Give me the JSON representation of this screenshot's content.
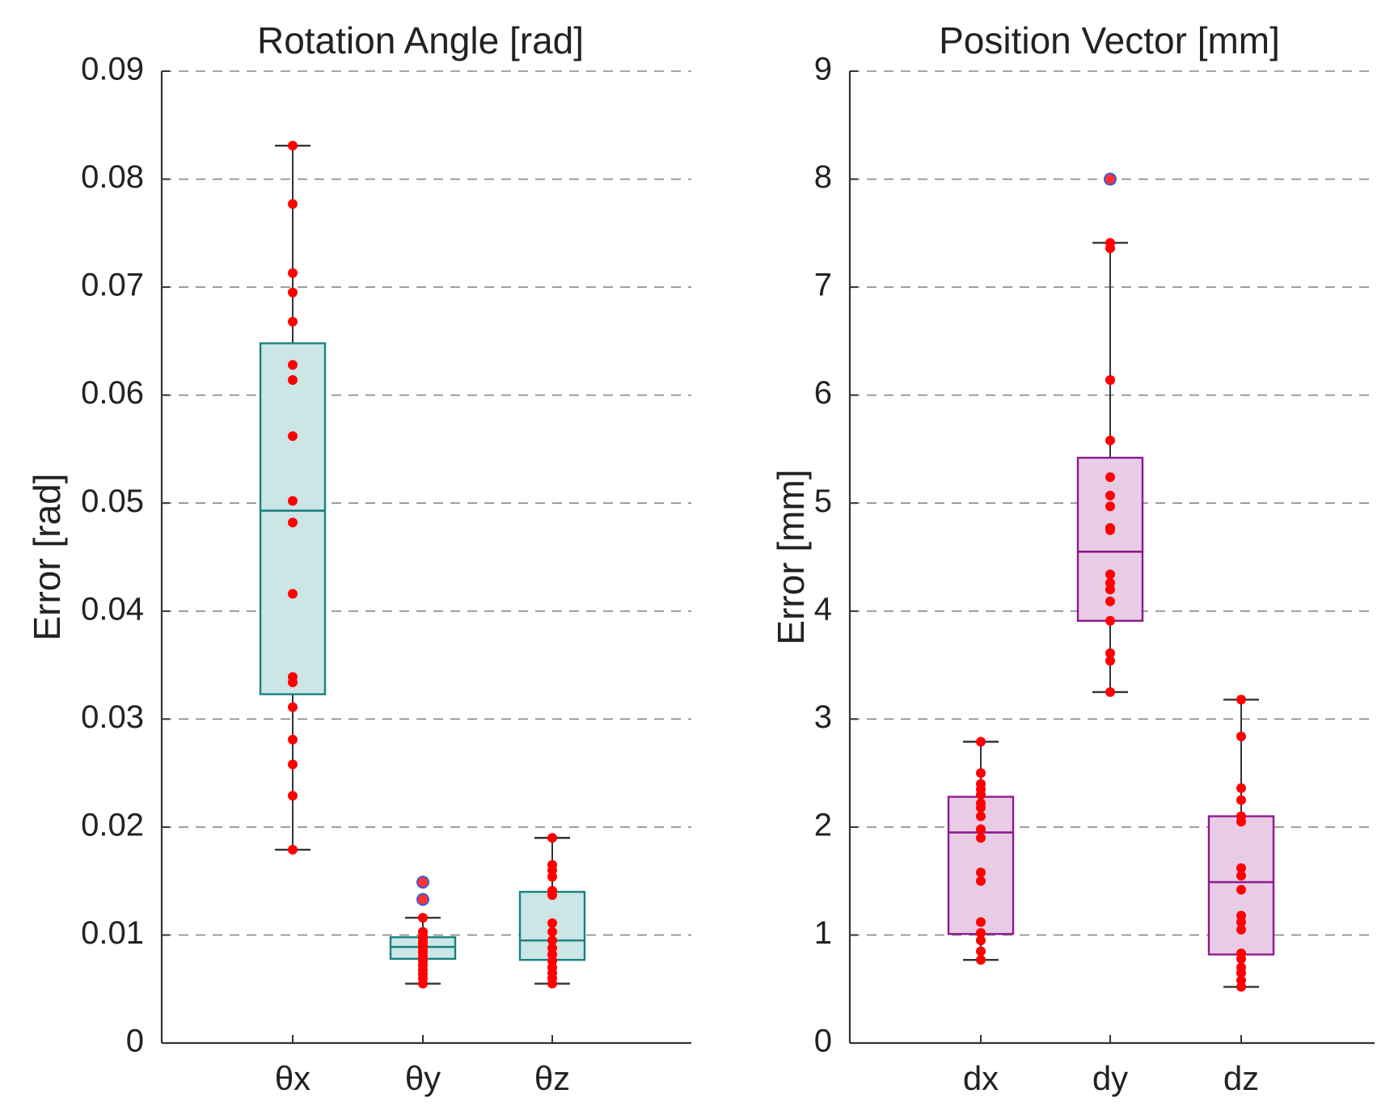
{
  "chart_data": [
    {
      "type": "box",
      "title": "Rotation Angle [rad]",
      "ylabel": "Error [rad]",
      "xlabel": "",
      "ylim": [
        0,
        0.09
      ],
      "yticks": [
        0,
        0.01,
        0.02,
        0.03,
        0.04,
        0.05,
        0.06,
        0.07,
        0.08,
        0.09
      ],
      "ytick_labels": [
        "0",
        "0.01",
        "0.02",
        "0.03",
        "0.04",
        "0.05",
        "0.06",
        "0.07",
        "0.08",
        "0.09"
      ],
      "grid": "horizontal dashed",
      "box_fill": "#cce5e5",
      "box_stroke": "#1a8080",
      "whisker_color": "#333333",
      "point_color": "#ff0000",
      "outlier_color": "#ff3333",
      "outlier_edge": "#3b5bd9",
      "categories": [
        "θx",
        "θy",
        "θz"
      ],
      "boxes": [
        {
          "category": "θx",
          "q1": 0.0323,
          "median": 0.0493,
          "q3": 0.0648,
          "whisker_low": 0.0179,
          "whisker_high": 0.0831,
          "points": [
            0.0179,
            0.0229,
            0.0258,
            0.0281,
            0.0311,
            0.0334,
            0.0339,
            0.0416,
            0.0482,
            0.0502,
            0.0562,
            0.0614,
            0.0628,
            0.0668,
            0.0695,
            0.0713,
            0.0777,
            0.0831
          ],
          "outliers": []
        },
        {
          "category": "θy",
          "q1": 0.0078,
          "median": 0.0089,
          "q3": 0.0098,
          "whisker_low": 0.0055,
          "whisker_high": 0.0116,
          "points": [
            0.0055,
            0.006,
            0.0064,
            0.0068,
            0.0072,
            0.0076,
            0.008,
            0.0084,
            0.0087,
            0.009,
            0.0093,
            0.0096,
            0.0099,
            0.0103,
            0.0116
          ],
          "outliers": [
            0.0133,
            0.0149
          ]
        },
        {
          "category": "θz",
          "q1": 0.0077,
          "median": 0.0095,
          "q3": 0.014,
          "whisker_low": 0.0055,
          "whisker_high": 0.019,
          "points": [
            0.0055,
            0.006,
            0.0065,
            0.007,
            0.0076,
            0.0082,
            0.0088,
            0.0095,
            0.0103,
            0.0111,
            0.0137,
            0.0141,
            0.0154,
            0.016,
            0.0165,
            0.019
          ],
          "outliers": []
        }
      ]
    },
    {
      "type": "box",
      "title": "Position Vector [mm]",
      "ylabel": "Error [mm]",
      "xlabel": "",
      "ylim": [
        0,
        9
      ],
      "yticks": [
        0,
        1,
        2,
        3,
        4,
        5,
        6,
        7,
        8,
        9
      ],
      "ytick_labels": [
        "0",
        "1",
        "2",
        "3",
        "4",
        "5",
        "6",
        "7",
        "8",
        "9"
      ],
      "grid": "horizontal dashed",
      "box_fill": "#e8cce6",
      "box_stroke": "#8e1a8e",
      "whisker_color": "#333333",
      "point_color": "#ff0000",
      "outlier_color": "#ff3333",
      "outlier_edge": "#3b5bd9",
      "categories": [
        "dx",
        "dy",
        "dz"
      ],
      "boxes": [
        {
          "category": "dx",
          "q1": 1.01,
          "median": 1.95,
          "q3": 2.28,
          "whisker_low": 0.77,
          "whisker_high": 2.79,
          "points": [
            0.77,
            0.85,
            0.95,
            1.02,
            1.12,
            1.5,
            1.58,
            1.9,
            1.98,
            2.1,
            2.18,
            2.22,
            2.3,
            2.35,
            2.4,
            2.5,
            2.79
          ],
          "outliers": []
        },
        {
          "category": "dy",
          "q1": 3.91,
          "median": 4.55,
          "q3": 5.42,
          "whisker_low": 3.25,
          "whisker_high": 7.41,
          "points": [
            3.25,
            3.54,
            3.61,
            3.91,
            4.09,
            4.2,
            4.26,
            4.34,
            4.75,
            4.77,
            4.97,
            5.07,
            5.24,
            5.58,
            6.14,
            7.36,
            7.41
          ],
          "outliers": [
            8.0
          ]
        },
        {
          "category": "dz",
          "q1": 0.82,
          "median": 1.49,
          "q3": 2.1,
          "whisker_low": 0.52,
          "whisker_high": 3.18,
          "points": [
            0.52,
            0.58,
            0.65,
            0.7,
            0.78,
            0.83,
            1.05,
            1.12,
            1.18,
            1.42,
            1.55,
            1.62,
            2.05,
            2.1,
            2.25,
            2.36,
            2.84,
            3.18
          ],
          "outliers": []
        }
      ]
    }
  ]
}
